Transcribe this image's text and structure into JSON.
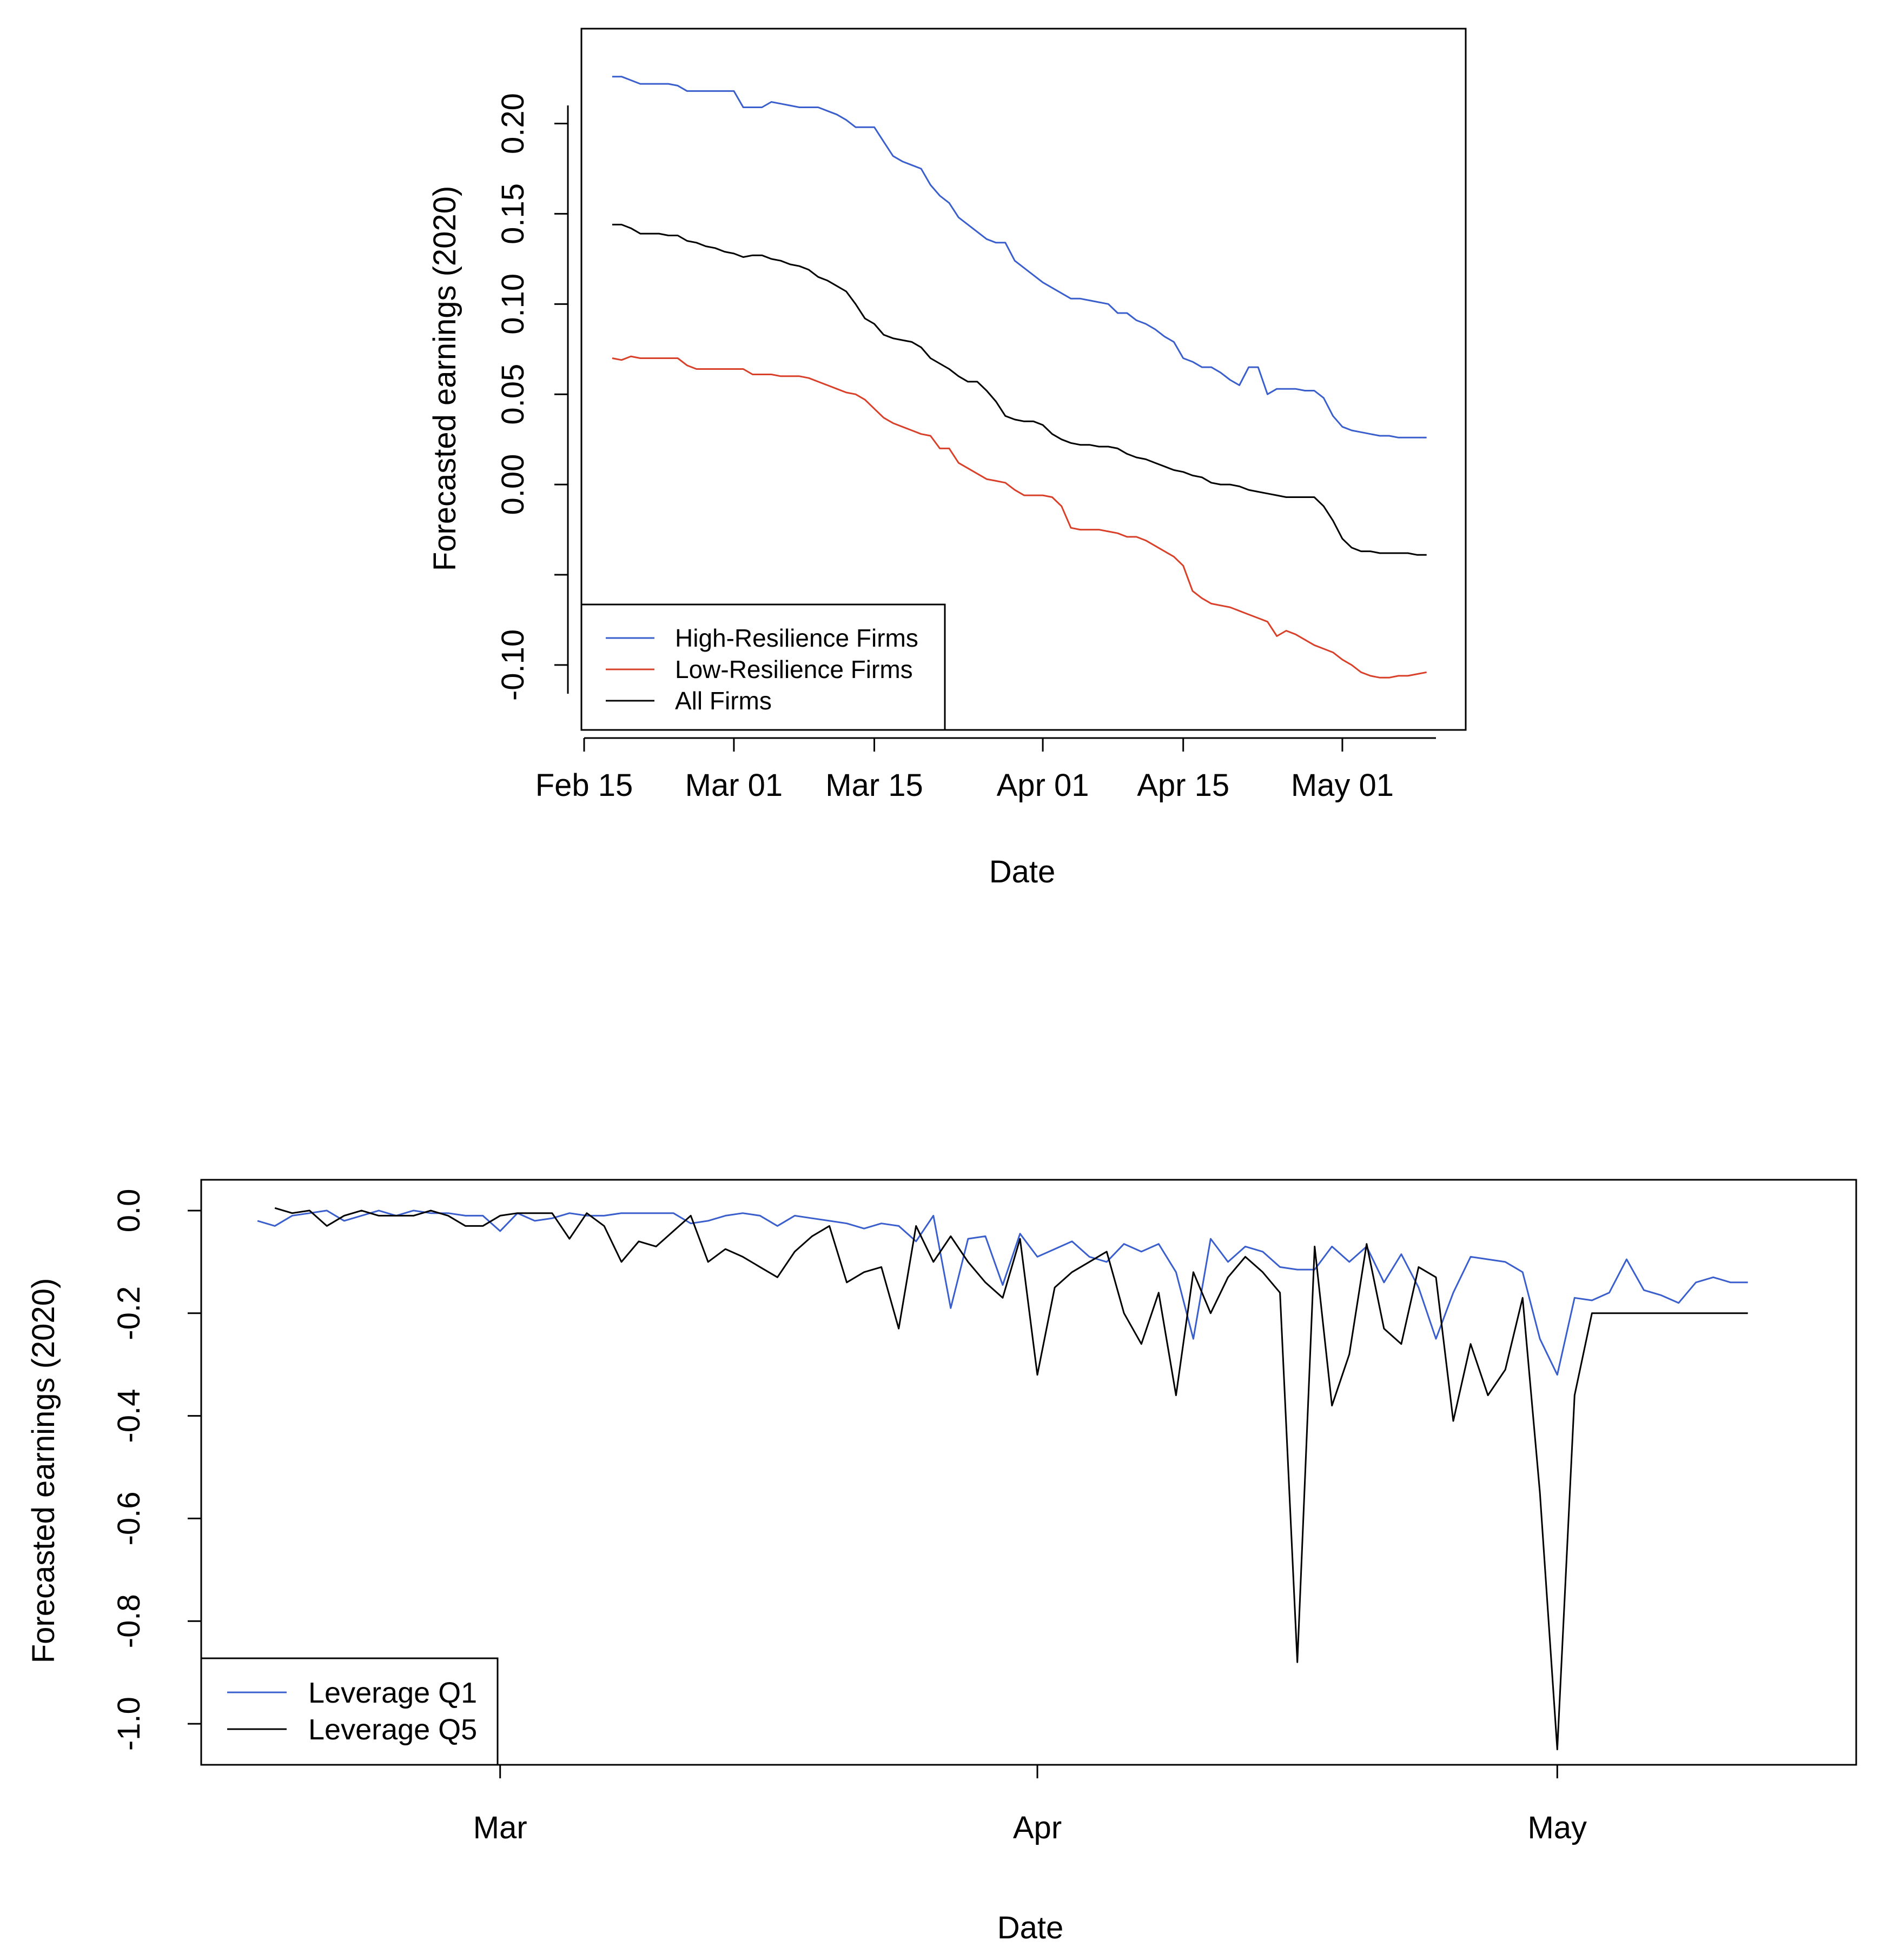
{
  "chart_data": [
    {
      "type": "line",
      "xlabel": "Date",
      "ylabel": "Forecasted earnings (2020)",
      "xlim": [
        0,
        91
      ],
      "ylim": [
        -0.118,
        0.24
      ],
      "x_ticks": [
        {
          "value": 0,
          "label": "Feb 15"
        },
        {
          "value": 16,
          "label": "Mar 01"
        },
        {
          "value": 31,
          "label": "Mar 15"
        },
        {
          "value": 49,
          "label": "Apr 01"
        },
        {
          "value": 64,
          "label": "Apr 15"
        },
        {
          "value": 81,
          "label": "May 01"
        }
      ],
      "y_ticks": [
        {
          "value": -0.1,
          "label": "-0.10"
        },
        {
          "value": -0.05,
          "label": ""
        },
        {
          "value": 0.0,
          "label": "0.00"
        },
        {
          "value": 0.05,
          "label": "0.05"
        },
        {
          "value": 0.1,
          "label": "0.10"
        },
        {
          "value": 0.15,
          "label": "0.15"
        },
        {
          "value": 0.2,
          "label": "0.20"
        }
      ],
      "legend_position": "bottom-left",
      "series": [
        {
          "name": "High-Resilience Firms",
          "color": "#3a5fcd",
          "x": [
            3,
            4,
            5,
            6,
            7,
            8,
            9,
            10,
            11,
            12,
            13,
            14,
            15,
            16,
            17,
            18,
            19,
            20,
            21,
            22,
            23,
            24,
            25,
            26,
            27,
            28,
            29,
            30,
            31,
            32,
            33,
            34,
            35,
            36,
            37,
            38,
            39,
            40,
            41,
            42,
            43,
            44,
            45,
            46,
            47,
            48,
            49,
            50,
            51,
            52,
            53,
            54,
            55,
            56,
            57,
            58,
            59,
            60,
            61,
            62,
            63,
            64,
            65,
            66,
            67,
            68,
            69,
            70,
            71,
            72,
            73,
            74,
            75,
            76,
            77,
            78,
            79,
            80,
            81,
            82,
            83,
            84,
            85,
            86,
            87,
            88,
            89,
            90
          ],
          "values": [
            0.226,
            0.226,
            0.224,
            0.222,
            0.222,
            0.222,
            0.222,
            0.221,
            0.218,
            0.218,
            0.218,
            0.218,
            0.218,
            0.218,
            0.209,
            0.209,
            0.209,
            0.212,
            0.211,
            0.21,
            0.209,
            0.209,
            0.209,
            0.207,
            0.205,
            0.202,
            0.198,
            0.198,
            0.198,
            0.19,
            0.182,
            0.179,
            0.177,
            0.175,
            0.166,
            0.16,
            0.156,
            0.148,
            0.144,
            0.14,
            0.136,
            0.134,
            0.134,
            0.124,
            0.12,
            0.116,
            0.112,
            0.109,
            0.106,
            0.103,
            0.103,
            0.102,
            0.101,
            0.1,
            0.095,
            0.095,
            0.091,
            0.089,
            0.086,
            0.082,
            0.079,
            0.07,
            0.068,
            0.065,
            0.065,
            0.062,
            0.058,
            0.055,
            0.065,
            0.065,
            0.05,
            0.053,
            0.053,
            0.053,
            0.052,
            0.052,
            0.048,
            0.038,
            0.032,
            0.03,
            0.029,
            0.028,
            0.027,
            0.027,
            0.026,
            0.026,
            0.026,
            0.026
          ]
        },
        {
          "name": "Low-Resilience Firms",
          "color": "#d9402a",
          "x": [
            3,
            4,
            5,
            6,
            7,
            8,
            9,
            10,
            11,
            12,
            13,
            14,
            15,
            16,
            17,
            18,
            19,
            20,
            21,
            22,
            23,
            24,
            25,
            26,
            27,
            28,
            29,
            30,
            31,
            32,
            33,
            34,
            35,
            36,
            37,
            38,
            39,
            40,
            41,
            42,
            43,
            44,
            45,
            46,
            47,
            48,
            49,
            50,
            51,
            52,
            53,
            54,
            55,
            56,
            57,
            58,
            59,
            60,
            61,
            62,
            63,
            64,
            65,
            66,
            67,
            68,
            69,
            70,
            71,
            72,
            73,
            74,
            75,
            76,
            77,
            78,
            79,
            80,
            81,
            82,
            83,
            84,
            85,
            86,
            87,
            88,
            89,
            90
          ],
          "values": [
            0.07,
            0.069,
            0.071,
            0.07,
            0.07,
            0.07,
            0.07,
            0.07,
            0.066,
            0.064,
            0.064,
            0.064,
            0.064,
            0.064,
            0.064,
            0.061,
            0.061,
            0.061,
            0.06,
            0.06,
            0.06,
            0.059,
            0.057,
            0.055,
            0.053,
            0.051,
            0.05,
            0.047,
            0.042,
            0.037,
            0.034,
            0.032,
            0.03,
            0.028,
            0.027,
            0.02,
            0.02,
            0.012,
            0.009,
            0.006,
            0.003,
            0.002,
            0.001,
            -0.003,
            -0.006,
            -0.006,
            -0.006,
            -0.007,
            -0.012,
            -0.024,
            -0.025,
            -0.025,
            -0.025,
            -0.026,
            -0.027,
            -0.029,
            -0.029,
            -0.031,
            -0.034,
            -0.037,
            -0.04,
            -0.045,
            -0.059,
            -0.063,
            -0.066,
            -0.067,
            -0.068,
            -0.07,
            -0.072,
            -0.074,
            -0.076,
            -0.084,
            -0.081,
            -0.083,
            -0.086,
            -0.089,
            -0.091,
            -0.093,
            -0.097,
            -0.1,
            -0.104,
            -0.106,
            -0.107,
            -0.107,
            -0.106,
            -0.106,
            -0.105,
            -0.104
          ]
        },
        {
          "name": "All Firms",
          "color": "#000000",
          "x": [
            3,
            4,
            5,
            6,
            7,
            8,
            9,
            10,
            11,
            12,
            13,
            14,
            15,
            16,
            17,
            18,
            19,
            20,
            21,
            22,
            23,
            24,
            25,
            26,
            27,
            28,
            29,
            30,
            31,
            32,
            33,
            34,
            35,
            36,
            37,
            38,
            39,
            40,
            41,
            42,
            43,
            44,
            45,
            46,
            47,
            48,
            49,
            50,
            51,
            52,
            53,
            54,
            55,
            56,
            57,
            58,
            59,
            60,
            61,
            62,
            63,
            64,
            65,
            66,
            67,
            68,
            69,
            70,
            71,
            72,
            73,
            74,
            75,
            76,
            77,
            78,
            79,
            80,
            81,
            82,
            83,
            84,
            85,
            86,
            87,
            88,
            89,
            90
          ],
          "values": [
            0.144,
            0.144,
            0.142,
            0.139,
            0.139,
            0.139,
            0.138,
            0.138,
            0.135,
            0.134,
            0.132,
            0.131,
            0.129,
            0.128,
            0.126,
            0.127,
            0.127,
            0.125,
            0.124,
            0.122,
            0.121,
            0.119,
            0.115,
            0.113,
            0.11,
            0.107,
            0.1,
            0.092,
            0.089,
            0.083,
            0.081,
            0.08,
            0.079,
            0.076,
            0.07,
            0.067,
            0.064,
            0.06,
            0.057,
            0.057,
            0.052,
            0.046,
            0.038,
            0.036,
            0.035,
            0.035,
            0.033,
            0.028,
            0.025,
            0.023,
            0.022,
            0.022,
            0.021,
            0.021,
            0.02,
            0.017,
            0.015,
            0.014,
            0.012,
            0.01,
            0.008,
            0.007,
            0.005,
            0.004,
            0.001,
            0.0,
            0.0,
            -0.001,
            -0.003,
            -0.004,
            -0.005,
            -0.006,
            -0.007,
            -0.007,
            -0.007,
            -0.007,
            -0.012,
            -0.02,
            -0.03,
            -0.035,
            -0.037,
            -0.037,
            -0.038,
            -0.038,
            -0.038,
            -0.038,
            -0.039,
            -0.039
          ]
        }
      ]
    },
    {
      "type": "line",
      "xlabel": "Date",
      "ylabel": "Forecasted earnings (2020)",
      "xlim": [
        0,
        95
      ],
      "ylim": [
        -1.08,
        0.06
      ],
      "x_ticks": [
        {
          "value": 17,
          "label": "Mar"
        },
        {
          "value": 48,
          "label": "Apr"
        },
        {
          "value": 78,
          "label": "May"
        }
      ],
      "y_ticks": [
        {
          "value": 0.0,
          "label": "0.0"
        },
        {
          "value": -0.2,
          "label": "-0.2"
        },
        {
          "value": -0.4,
          "label": "-0.4"
        },
        {
          "value": -0.6,
          "label": "-0.6"
        },
        {
          "value": -0.8,
          "label": "-0.8"
        },
        {
          "value": -1.0,
          "label": "-1.0"
        }
      ],
      "legend_position": "bottom-left",
      "series": [
        {
          "name": "Leverage Q1",
          "color": "#3a5fcd",
          "x": [
            3,
            4,
            5,
            6,
            7,
            8,
            9,
            10,
            11,
            12,
            13,
            14,
            15,
            16,
            17,
            18,
            19,
            20,
            21,
            22,
            23,
            24,
            25,
            26,
            27,
            28,
            29,
            30,
            31,
            32,
            33,
            34,
            35,
            36,
            37,
            38,
            39,
            40,
            41,
            42,
            43,
            44,
            45,
            46,
            47,
            48,
            49,
            50,
            51,
            52,
            53,
            54,
            55,
            56,
            57,
            58,
            59,
            60,
            61,
            62,
            63,
            64,
            65,
            66,
            67,
            68,
            69,
            70,
            71,
            72,
            73,
            74,
            75,
            76,
            77,
            78,
            79,
            80,
            81,
            82,
            83,
            84,
            85,
            86,
            87,
            88,
            89
          ],
          "values": [
            -0.02,
            -0.03,
            -0.01,
            -0.005,
            0.0,
            -0.02,
            -0.01,
            0.0,
            -0.01,
            0.0,
            -0.005,
            -0.005,
            -0.01,
            -0.01,
            -0.04,
            -0.005,
            -0.02,
            -0.015,
            -0.005,
            -0.01,
            -0.01,
            -0.005,
            -0.005,
            -0.005,
            -0.005,
            -0.025,
            -0.02,
            -0.01,
            -0.005,
            -0.01,
            -0.03,
            -0.01,
            -0.015,
            -0.02,
            -0.025,
            -0.035,
            -0.025,
            -0.03,
            -0.06,
            -0.01,
            -0.19,
            -0.055,
            -0.05,
            -0.145,
            -0.045,
            -0.09,
            -0.075,
            -0.06,
            -0.09,
            -0.1,
            -0.065,
            -0.08,
            -0.065,
            -0.12,
            -0.25,
            -0.055,
            -0.1,
            -0.07,
            -0.08,
            -0.11,
            -0.115,
            -0.115,
            -0.07,
            -0.1,
            -0.07,
            -0.14,
            -0.085,
            -0.15,
            -0.25,
            -0.16,
            -0.09,
            -0.095,
            -0.1,
            -0.12,
            -0.25,
            -0.32,
            -0.17,
            -0.175,
            -0.16,
            -0.095,
            -0.155,
            -0.165,
            -0.18,
            -0.14,
            -0.13,
            -0.14,
            -0.14
          ]
        },
        {
          "name": "Leverage Q5",
          "color": "#000000",
          "x": [
            4,
            5,
            6,
            7,
            8,
            9,
            10,
            11,
            12,
            13,
            14,
            15,
            16,
            17,
            18,
            19,
            20,
            21,
            22,
            23,
            24,
            25,
            26,
            27,
            28,
            29,
            30,
            31,
            32,
            33,
            34,
            35,
            36,
            37,
            38,
            39,
            40,
            41,
            42,
            43,
            44,
            45,
            46,
            47,
            48,
            49,
            50,
            51,
            52,
            53,
            54,
            55,
            56,
            57,
            58,
            59,
            60,
            61,
            62,
            63,
            64,
            65,
            66,
            67,
            68,
            69,
            70,
            71,
            72,
            73,
            74,
            75,
            76,
            77,
            78,
            79,
            80,
            81,
            82,
            83,
            84,
            85,
            86,
            87,
            88,
            89
          ],
          "values": [
            0.005,
            -0.005,
            0.0,
            -0.03,
            -0.01,
            0.0,
            -0.01,
            -0.01,
            -0.01,
            0.0,
            -0.01,
            -0.03,
            -0.03,
            -0.01,
            -0.005,
            -0.005,
            -0.005,
            -0.055,
            -0.005,
            -0.03,
            -0.1,
            -0.06,
            -0.07,
            -0.04,
            -0.01,
            -0.1,
            -0.075,
            -0.09,
            -0.11,
            -0.13,
            -0.08,
            -0.05,
            -0.03,
            -0.14,
            -0.12,
            -0.11,
            -0.23,
            -0.03,
            -0.1,
            -0.05,
            -0.1,
            -0.14,
            -0.17,
            -0.055,
            -0.32,
            -0.15,
            -0.12,
            -0.1,
            -0.08,
            -0.2,
            -0.26,
            -0.16,
            -0.36,
            -0.12,
            -0.2,
            -0.13,
            -0.09,
            -0.12,
            -0.16,
            -0.88,
            -0.07,
            -0.38,
            -0.28,
            -0.065,
            -0.23,
            -0.26,
            -0.11,
            -0.13,
            -0.41,
            -0.26,
            -0.36,
            -0.31,
            -0.17,
            -0.55,
            -1.05,
            -0.36,
            -0.2,
            -0.2,
            -0.2,
            -0.2,
            -0.2,
            -0.2,
            -0.2,
            -0.2,
            -0.2,
            -0.2
          ]
        }
      ]
    }
  ]
}
